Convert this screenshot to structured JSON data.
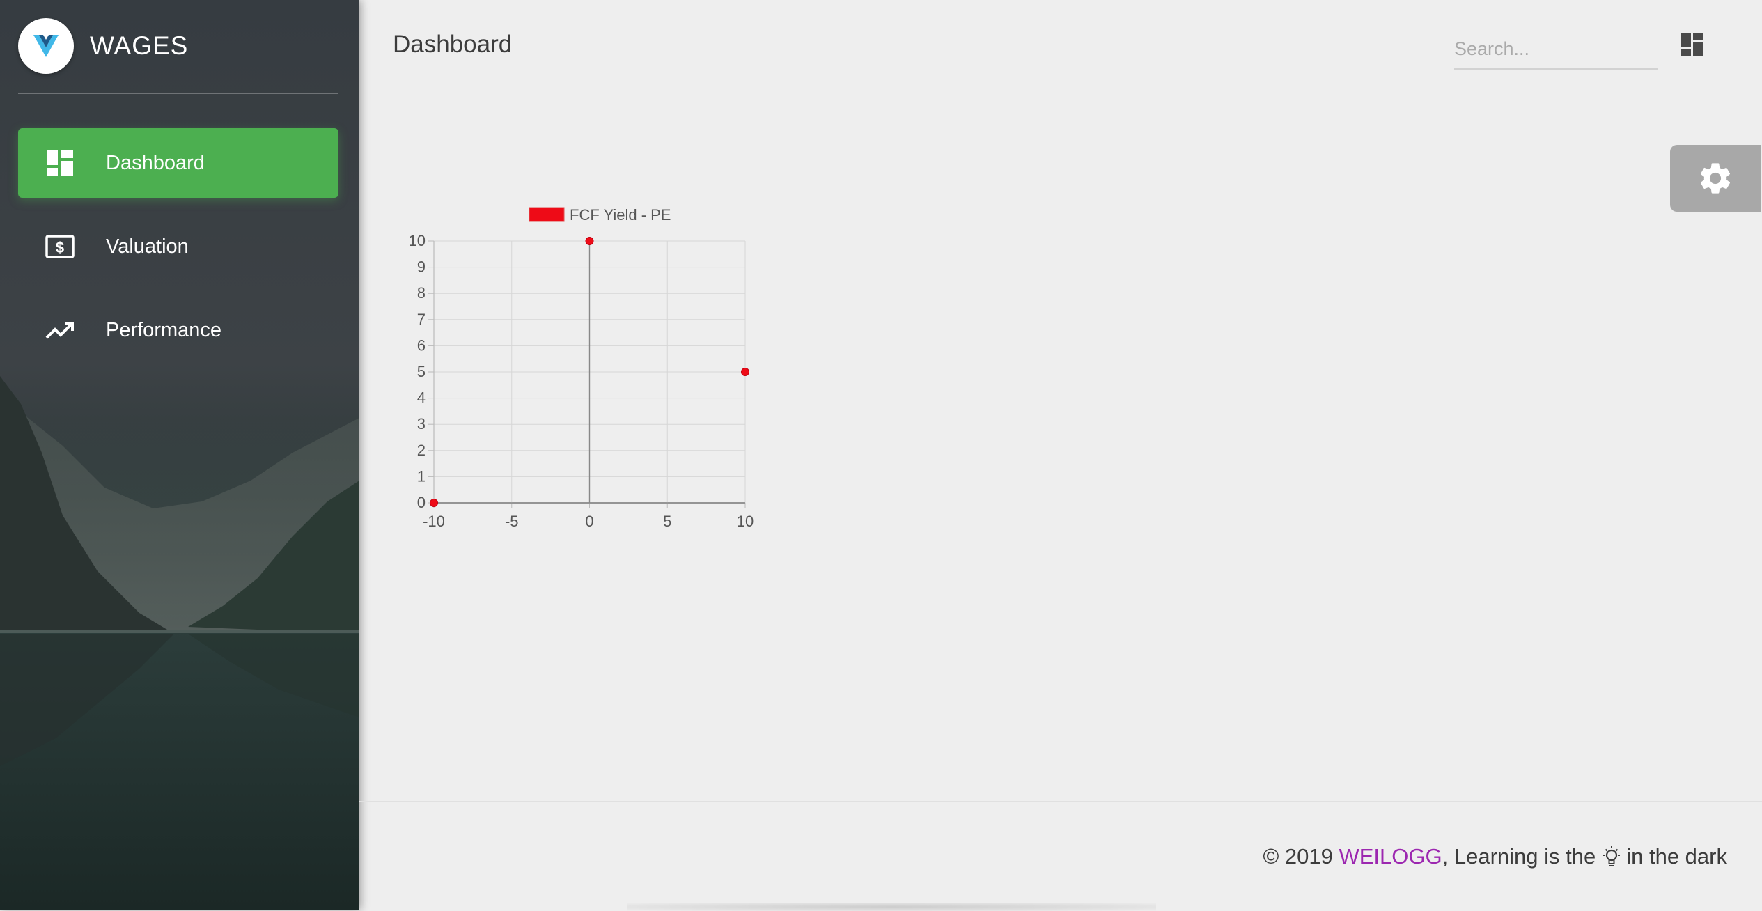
{
  "brand": {
    "title": "WAGES",
    "logo_icon": "vue-logo-icon"
  },
  "sidebar": {
    "items": [
      {
        "label": "Dashboard",
        "icon": "dashboard-icon",
        "active": true
      },
      {
        "label": "Valuation",
        "icon": "money-icon",
        "active": false
      },
      {
        "label": "Performance",
        "icon": "trending-up-icon",
        "active": false
      }
    ]
  },
  "header": {
    "title": "Dashboard",
    "search_placeholder": "Search...",
    "dashboard_icon": "dashboard-icon"
  },
  "settings": {
    "icon": "gear-icon"
  },
  "chart_data": {
    "type": "scatter",
    "series": [
      {
        "name": "FCF Yield - PE",
        "color": "#ee0b17",
        "points": [
          {
            "x": -10,
            "y": 0
          },
          {
            "x": 0,
            "y": 10
          },
          {
            "x": 10,
            "y": 5
          }
        ]
      }
    ],
    "xlim": [
      -10,
      10
    ],
    "ylim": [
      0,
      10
    ],
    "x_ticks": [
      -10,
      -5,
      0,
      5,
      10
    ],
    "y_ticks": [
      0,
      1,
      2,
      3,
      4,
      5,
      6,
      7,
      8,
      9,
      10
    ],
    "x_tick_labels": [
      "-10",
      "-5",
      "0",
      "5",
      "10"
    ],
    "y_tick_labels": [
      "0",
      "1",
      "2",
      "3",
      "4",
      "5",
      "6",
      "7",
      "8",
      "9",
      "10"
    ],
    "grid": true,
    "legend_position": "top"
  },
  "footer": {
    "copyright": "© 2019",
    "brand": "WEILOGG",
    "text_before_icon": ", Learning is the",
    "icon": "lightbulb-icon",
    "text_after_icon": "in the dark",
    "brand_color": "#9c27b0"
  }
}
